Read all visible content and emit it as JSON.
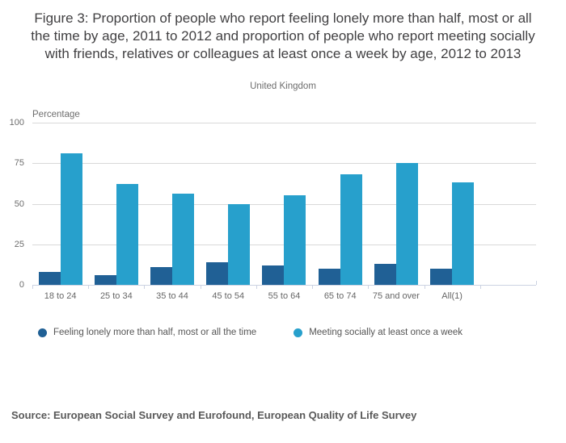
{
  "header": {
    "title": "Figure 3: Proportion of people who report feeling lonely more than half, most or all the time by age, 2011 to 2012 and proportion of people who report meeting socially with friends, relatives or colleagues at least once a week by age, 2012 to 2013",
    "subtitle": "United Kingdom"
  },
  "chart_data": {
    "type": "bar",
    "unit_label": "Percentage",
    "categories": [
      "18 to 24",
      "25 to 34",
      "35 to 44",
      "45 to 54",
      "55 to 64",
      "65 to 74",
      "75 and over",
      "All(1)"
    ],
    "series": [
      {
        "id": "lonely",
        "name": "Feeling lonely more than half, most or all the time",
        "color": "#206095",
        "values": [
          8,
          6,
          11,
          14,
          12,
          10,
          13,
          10
        ]
      },
      {
        "id": "social",
        "name": "Meeting socially at least once a week",
        "color": "#27A0CC",
        "values": [
          81,
          62,
          56,
          50,
          55,
          68,
          75,
          63
        ]
      }
    ],
    "ylim": [
      0,
      100
    ],
    "yticks": [
      0,
      25,
      50,
      75,
      100
    ],
    "grid": true,
    "legend_position": "bottom",
    "empty_trailing_slots": 1
  },
  "footer": {
    "source": "Source: European Social Survey and Eurofound, European Quality of Life Survey"
  },
  "colors": {
    "bar_dark": "#206095",
    "bar_light": "#27A0CC",
    "gridline": "#d9d9d9",
    "axis_line": "#ccd3e2",
    "title_text": "#414042",
    "muted_text": "#6d6d6d",
    "source_text": "#595959"
  }
}
